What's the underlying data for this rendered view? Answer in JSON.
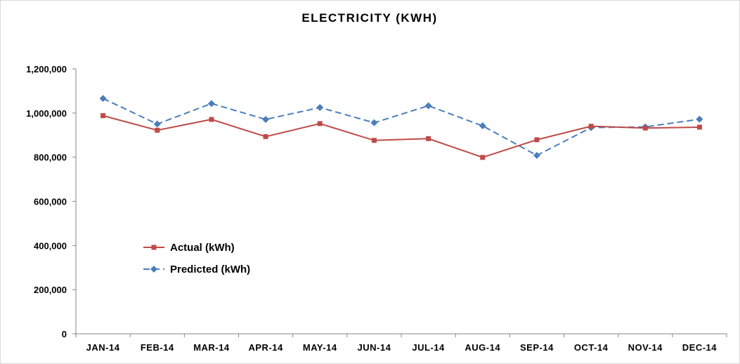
{
  "chart_data": {
    "type": "line",
    "title": "ELECTRICITY (KWH)",
    "xlabel": "",
    "ylabel": "",
    "categories": [
      "JAN-14",
      "FEB-14",
      "MAR-14",
      "APR-14",
      "MAY-14",
      "JUN-14",
      "JUL-14",
      "AUG-14",
      "SEP-14",
      "OCT-14",
      "NOV-14",
      "DEC-14"
    ],
    "ylim": [
      0,
      1200000
    ],
    "yticks": [
      "0",
      "200,000",
      "400,000",
      "600,000",
      "800,000",
      "1,000,000",
      "1,200,000"
    ],
    "ytick_values": [
      0,
      200000,
      400000,
      600000,
      800000,
      1000000,
      1200000
    ],
    "grid": false,
    "legend_placement": "lower-left inside plot",
    "series": [
      {
        "name": "Actual (kWh)",
        "color": "#be4b48",
        "marker": "square",
        "line_style": "solid",
        "values": [
          988000,
          922000,
          971000,
          893000,
          952000,
          876000,
          884000,
          799000,
          879000,
          940000,
          932000,
          936000
        ]
      },
      {
        "name": "Predicted (kWh)",
        "color": "#4a7ebb",
        "marker": "diamond",
        "line_style": "dashed",
        "values": [
          1066000,
          950000,
          1043000,
          971000,
          1025000,
          956000,
          1033000,
          942000,
          808000,
          934000,
          937000,
          972000
        ]
      }
    ]
  }
}
